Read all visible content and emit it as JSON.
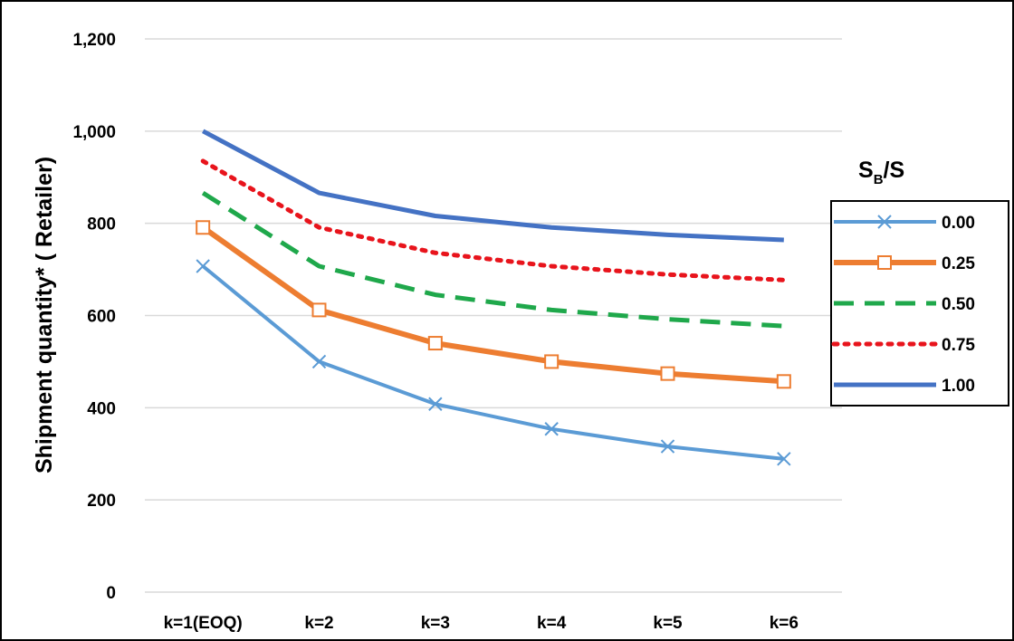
{
  "chart_data": {
    "type": "line",
    "title": "",
    "xlabel": "",
    "ylabel": "Shipment quantity* ( Retailer)",
    "categories": [
      "k=1(EOQ)",
      "k=2",
      "k=3",
      "k=4",
      "k=5",
      "k=6"
    ],
    "ylim": [
      0,
      1200
    ],
    "yticks": [
      0,
      200,
      400,
      600,
      800,
      1000,
      1200
    ],
    "ytick_labels": [
      "0",
      "200",
      "400",
      "600",
      "800",
      "1,000",
      "1,200"
    ],
    "grid": "horizontal",
    "legend": {
      "placement": "right",
      "title_main": "S",
      "title_sub": "B",
      "title_tail": "/S"
    },
    "series": [
      {
        "name": "0.00",
        "values": [
          707,
          500,
          408,
          354,
          316,
          289
        ],
        "color": "#5B9BD5",
        "style": "solid",
        "marker": "x",
        "width": 4
      },
      {
        "name": "0.25",
        "values": [
          791,
          612,
          540,
          500,
          474,
          457
        ],
        "color": "#ED7D31",
        "style": "solid",
        "marker": "square",
        "width": 6
      },
      {
        "name": "0.50",
        "values": [
          866,
          707,
          645,
          612,
          592,
          577
        ],
        "color": "#1FA84B",
        "style": "dashed",
        "marker": "none",
        "width": 5
      },
      {
        "name": "0.75",
        "values": [
          935,
          791,
          736,
          707,
          689,
          677
        ],
        "color": "#E8141C",
        "style": "dotted",
        "marker": "none",
        "width": 5
      },
      {
        "name": "1.00",
        "values": [
          1000,
          866,
          816,
          791,
          775,
          764
        ],
        "color": "#4472C4",
        "style": "solid",
        "marker": "none",
        "width": 5
      }
    ]
  }
}
